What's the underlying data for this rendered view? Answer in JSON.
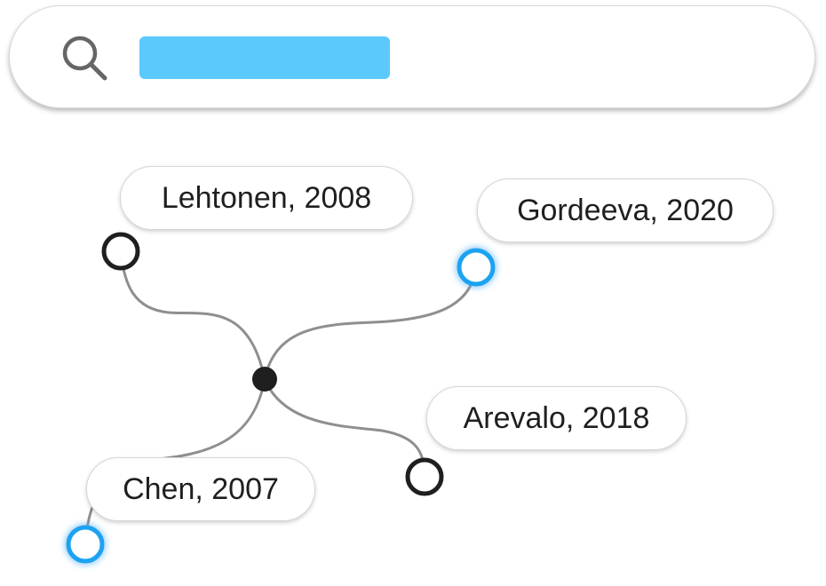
{
  "search": {
    "query_highlight_color": "#5cc9fd",
    "icon": "search-icon"
  },
  "graph": {
    "center_node_color": "#1f1f1f",
    "edge_color": "#8f8f8f",
    "highlight_color": "#1aa3f0",
    "nodes": [
      {
        "label": "Lehtonen, 2008",
        "highlighted": false
      },
      {
        "label": "Gordeeva, 2020",
        "highlighted": true
      },
      {
        "label": "Arevalo, 2018",
        "highlighted": false
      },
      {
        "label": "Chen, 2007",
        "highlighted": true
      }
    ]
  }
}
